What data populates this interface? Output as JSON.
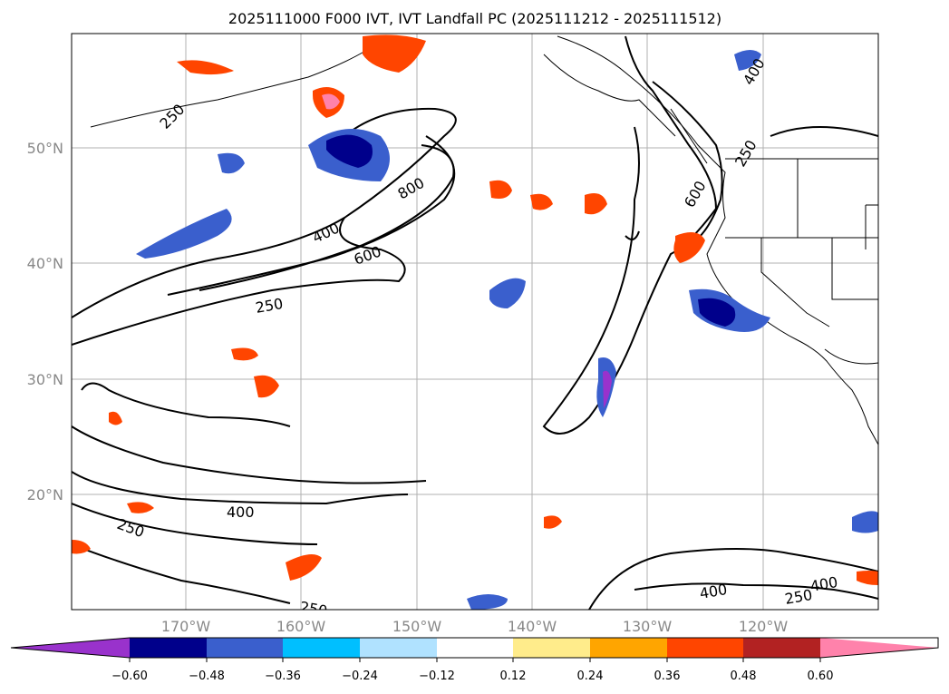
{
  "title": "2025111000 F000 IVT, IVT Landfall PC (2025111212 - 2025111512)",
  "axes": {
    "lat_ticks": [
      "50°N",
      "40°N",
      "30°N",
      "20°N"
    ],
    "lon_ticks": [
      "170°W",
      "160°W",
      "150°W",
      "140°W",
      "130°W",
      "120°W"
    ]
  },
  "colorbar": {
    "tick_labels": [
      "−0.60",
      "−0.48",
      "−0.36",
      "−0.24",
      "−0.12",
      "0.12",
      "0.24",
      "0.36",
      "0.48",
      "0.60"
    ],
    "colors": [
      "#9932cc",
      "#00008b",
      "#3a5fcd",
      "#00bfff",
      "#b0e2ff",
      "#ffffff",
      "#ffec8b",
      "#ffa500",
      "#ff4500",
      "#b22222",
      "#ff82ab"
    ]
  },
  "contour_labels": {
    "l1": "250",
    "l2": "400",
    "l3": "600",
    "l4": "800",
    "l5": "250",
    "l6": "400",
    "l7": "600",
    "l8": "250",
    "l9": "400",
    "l10": "250",
    "l11": "250",
    "l12": "400",
    "l13": "400",
    "l14": "250",
    "l15": "400"
  }
}
